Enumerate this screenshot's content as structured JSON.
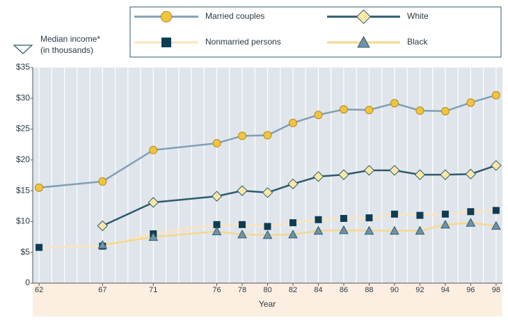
{
  "chart_data": {
    "type": "line",
    "y_label": [
      "Median income*",
      "(in thousands)"
    ],
    "x_label": "Year",
    "x": [
      62,
      67,
      71,
      76,
      78,
      80,
      82,
      84,
      86,
      88,
      90,
      92,
      94,
      96,
      98
    ],
    "xlim": [
      61.5,
      98.5
    ],
    "xticks": [
      62,
      67,
      71,
      76,
      78,
      80,
      82,
      84,
      86,
      88,
      90,
      92,
      94,
      96,
      98
    ],
    "x_minor_ticks": [
      62,
      63,
      64,
      65,
      66,
      67,
      68,
      69,
      70,
      71,
      72,
      73,
      74,
      75,
      76,
      77,
      78,
      79,
      80,
      81,
      82,
      83,
      84,
      85,
      86,
      87,
      88,
      89,
      90,
      91,
      92,
      93,
      94,
      95,
      96,
      97,
      98
    ],
    "ylim": [
      0,
      35
    ],
    "yticks": [
      0,
      {
        "value": 5,
        "label": "$5"
      },
      {
        "value": 10,
        "label": "$10"
      },
      {
        "value": 15,
        "label": "$15"
      },
      {
        "value": 20,
        "label": "$20"
      },
      {
        "value": 25,
        "label": "$25"
      },
      {
        "value": 30,
        "label": "$30"
      },
      {
        "value": 35,
        "label": "$35"
      }
    ],
    "series": [
      {
        "name": "Married couples",
        "color": "#7f9fb5",
        "marker": "circle",
        "marker_color": "#f2c43d",
        "values": [
          15.5,
          16.5,
          21.6,
          22.7,
          23.9,
          24.0,
          26.0,
          27.3,
          28.2,
          28.1,
          29.2,
          28.0,
          27.9,
          29.3,
          30.5
        ]
      },
      {
        "name": "White",
        "color": "#2e5a6e",
        "marker": "diamond",
        "marker_color": "#fbe8a6",
        "values": [
          null,
          9.3,
          13.1,
          14.1,
          15.0,
          14.7,
          16.1,
          17.3,
          17.6,
          18.3,
          18.3,
          17.6,
          17.6,
          17.7,
          19.1
        ]
      },
      {
        "name": "Nonmarried persons",
        "color": "#fde3bb",
        "marker": "square",
        "marker_color": "#0d3d54",
        "values": [
          5.8,
          6.0,
          8.0,
          9.5,
          9.5,
          9.2,
          9.8,
          10.3,
          10.5,
          10.6,
          11.2,
          11.0,
          11.2,
          11.6,
          11.8
        ]
      },
      {
        "name": "Black",
        "color": "#f5d88c",
        "marker": "triangle",
        "marker_color": "#6f93a8",
        "values": [
          null,
          6.2,
          7.5,
          8.4,
          7.9,
          7.8,
          7.9,
          8.5,
          8.6,
          8.5,
          8.5,
          8.5,
          9.5,
          9.8,
          9.3
        ]
      }
    ]
  }
}
